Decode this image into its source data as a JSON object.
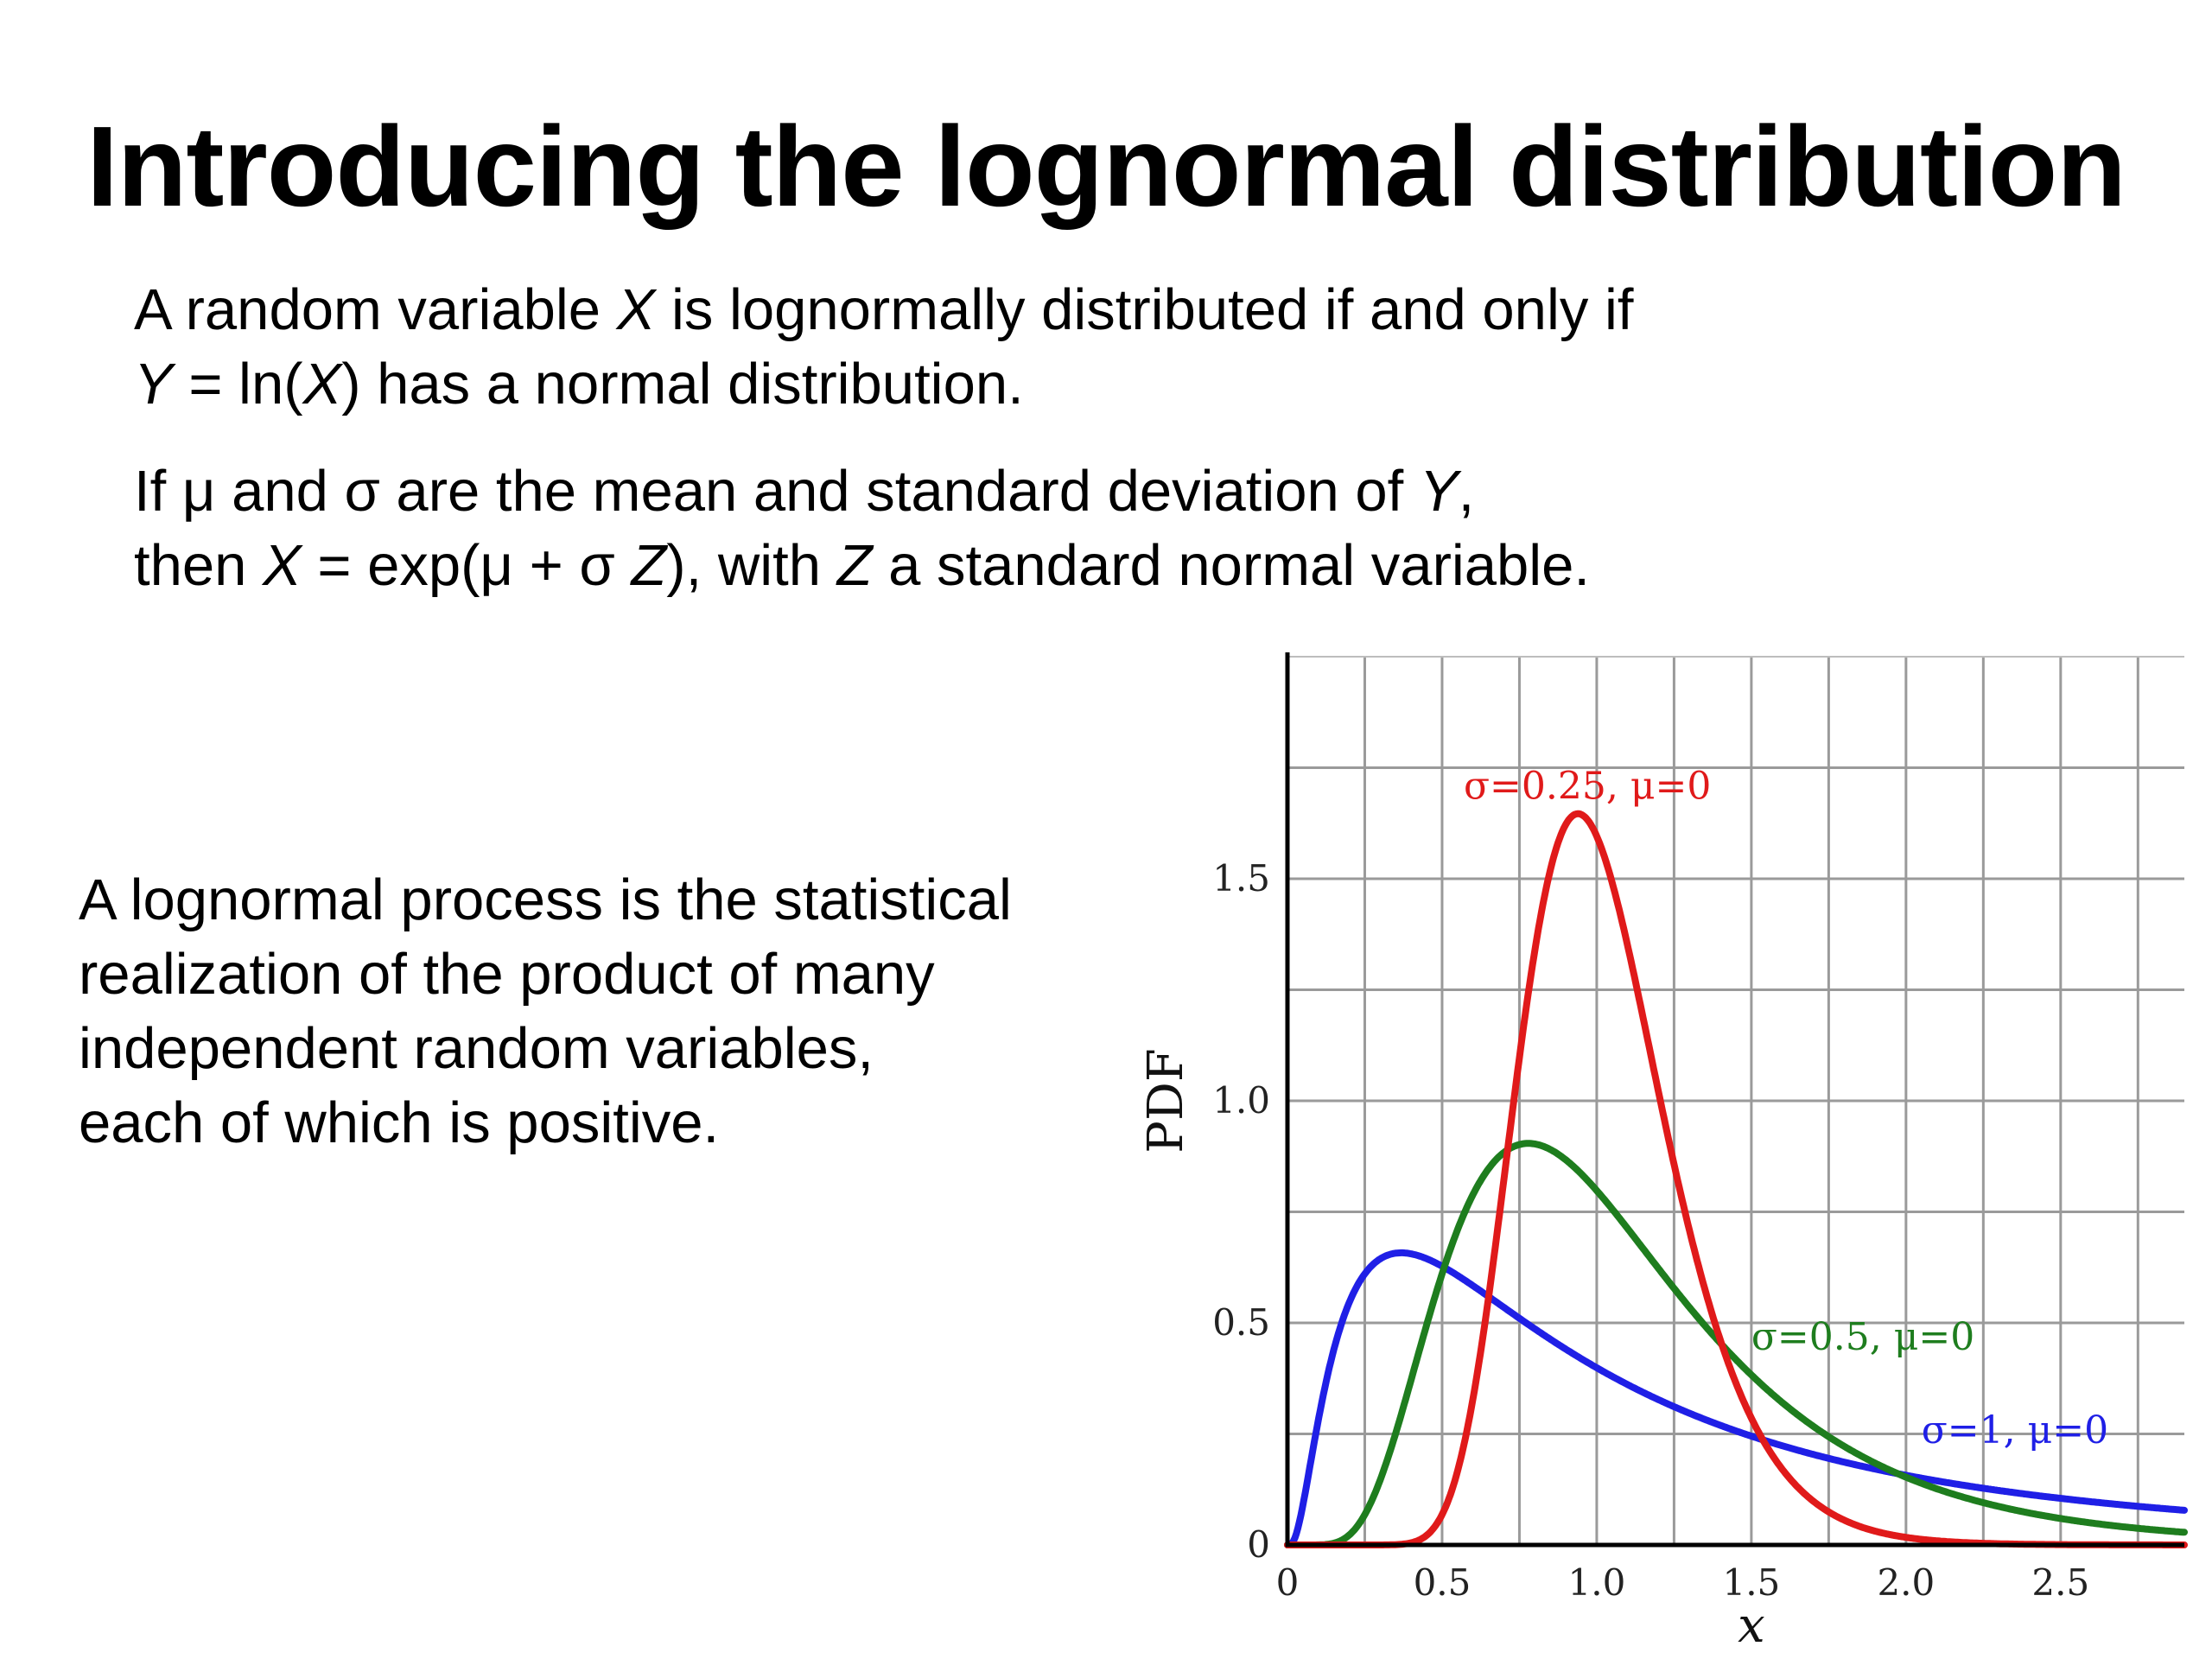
{
  "slide": {
    "title": "Introducing the lognormal distribution",
    "definition": {
      "line1": {
        "a": "A random variable ",
        "var": "X",
        "b": " is lognormally distributed if and only if"
      },
      "line2": {
        "var1": "Y",
        "a": " = ln(",
        "var2": "X",
        "b": ") has a normal distribution."
      }
    },
    "relation": {
      "line1": {
        "a": "If μ and σ are the mean and standard deviation of ",
        "var": "Y",
        "b": ","
      },
      "line2": {
        "a": "then ",
        "var1": "X",
        "b": " = exp(μ + σ ",
        "var2": "Z",
        "c": "), with ",
        "var3": "Z",
        "d": " a standard normal variable."
      }
    },
    "process": {
      "lines": [
        "A lognormal process is the statistical",
        "realization of the product of many",
        "independent random variables,",
        "each of which is positive."
      ]
    }
  },
  "chart_data": {
    "type": "line",
    "xlabel": "x",
    "ylabel": "PDF",
    "xlim": [
      0,
      2.9
    ],
    "ylim": [
      0,
      2.0
    ],
    "xticks": [
      0,
      0.5,
      1.0,
      1.5,
      2.0,
      2.5
    ],
    "xtick_labels": [
      "0",
      "0.5",
      "1.0",
      "1.5",
      "2.0",
      "2.5"
    ],
    "yticks": [
      0,
      0.5,
      1.0,
      1.5
    ],
    "ytick_labels": [
      "0",
      "0.5",
      "1.0",
      "1.5"
    ],
    "grid": true,
    "series": [
      {
        "name": "σ=1, μ=0",
        "sigma": 1,
        "mu": 0,
        "color": "#1f1fe6"
      },
      {
        "name": "σ=0.5, μ=0",
        "sigma": 0.5,
        "mu": 0,
        "color": "#1e7d1e"
      },
      {
        "name": "σ=0.25, μ=0",
        "sigma": 0.25,
        "mu": 0,
        "color": "#e01a1a"
      }
    ]
  }
}
